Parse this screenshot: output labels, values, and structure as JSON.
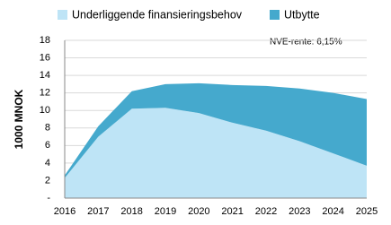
{
  "chart_data": {
    "type": "stacked_area",
    "y_label": "1000 MNOK",
    "annotation": "NVE-rente:  6,15%",
    "categories": [
      "2016",
      "2017",
      "2018",
      "2019",
      "2020",
      "2021",
      "2022",
      "2023",
      "2024",
      "2025"
    ],
    "series": [
      {
        "name": "Underliggende finansieringsbehov",
        "color": "#bee4f6",
        "values": [
          2.3,
          7.0,
          10.2,
          10.3,
          9.7,
          8.6,
          7.7,
          6.5,
          5.1,
          3.7
        ]
      },
      {
        "name": "Utbytte",
        "color": "#45a9cd",
        "values": [
          0.3,
          1.2,
          2.0,
          2.7,
          3.4,
          4.3,
          5.1,
          6.0,
          6.9,
          7.6
        ]
      }
    ],
    "ylim": [
      0,
      18
    ],
    "yticks": [
      {
        "value": 0,
        "label": "-"
      },
      2,
      4,
      6,
      8,
      10,
      12,
      14,
      16,
      18
    ],
    "grid": true
  }
}
